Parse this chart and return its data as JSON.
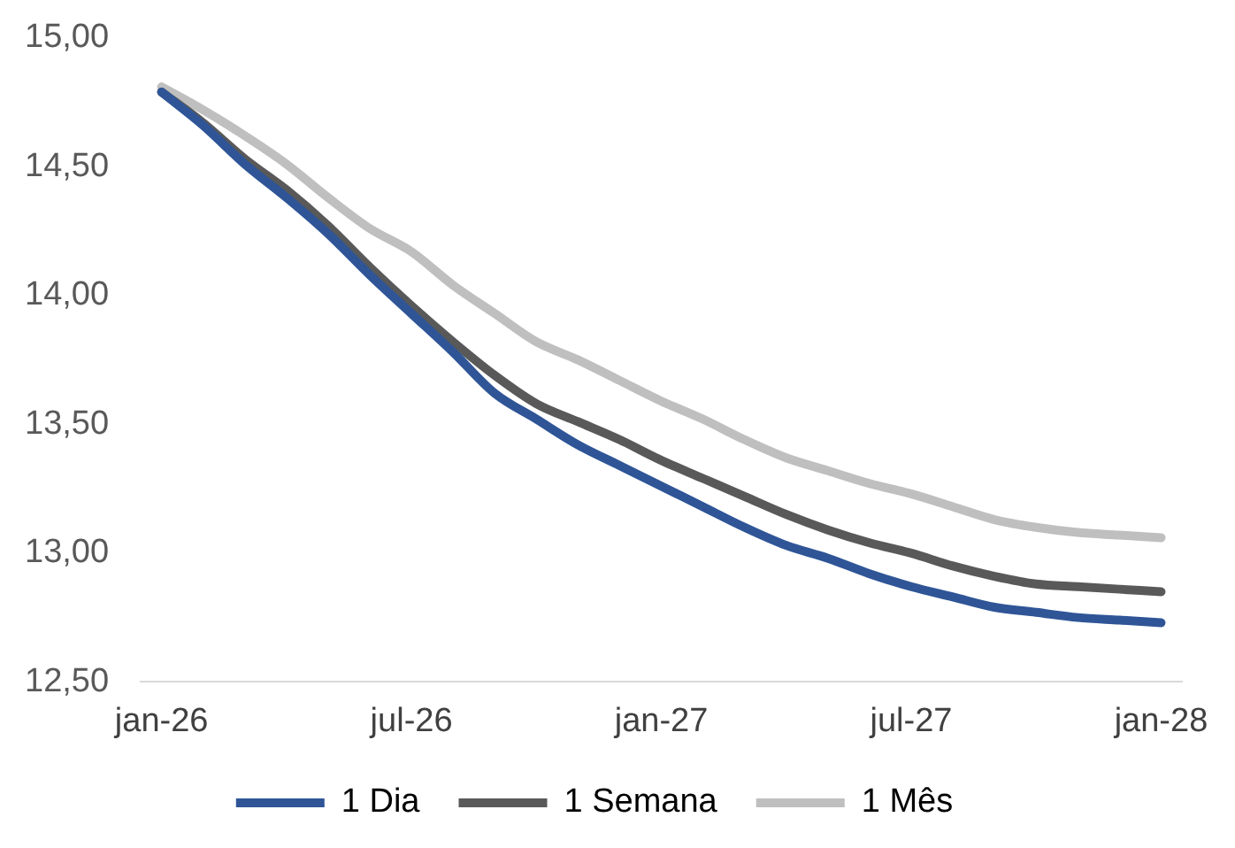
{
  "chart_data": {
    "type": "line",
    "categories": [
      "jan-26",
      null,
      null,
      null,
      null,
      null,
      "jul-26",
      null,
      null,
      null,
      null,
      null,
      "jan-27",
      null,
      null,
      null,
      null,
      null,
      "jul-27",
      null,
      null,
      null,
      null,
      null,
      "jan-28"
    ],
    "series": [
      {
        "name": "1 Dia",
        "color": "#2f5597",
        "values": [
          14.79,
          14.66,
          14.51,
          14.38,
          14.24,
          14.08,
          13.93,
          13.78,
          13.62,
          13.52,
          13.42,
          13.34,
          13.26,
          13.18,
          13.1,
          13.03,
          12.98,
          12.92,
          12.87,
          12.83,
          12.79,
          12.77,
          12.75,
          12.74,
          12.73
        ]
      },
      {
        "name": "1 Semana",
        "color": "#595959",
        "values": [
          14.79,
          14.67,
          14.53,
          14.41,
          14.27,
          14.11,
          13.96,
          13.82,
          13.69,
          13.58,
          13.51,
          13.44,
          13.36,
          13.29,
          13.22,
          13.15,
          13.09,
          13.04,
          13.0,
          12.95,
          12.91,
          12.88,
          12.87,
          12.86,
          12.85
        ]
      },
      {
        "name": "1 Mês",
        "color": "#bfbfbf",
        "values": [
          14.81,
          14.72,
          14.62,
          14.51,
          14.38,
          14.26,
          14.17,
          14.04,
          13.93,
          13.82,
          13.75,
          13.67,
          13.59,
          13.52,
          13.44,
          13.37,
          13.32,
          13.27,
          13.23,
          13.18,
          13.13,
          13.1,
          13.08,
          13.07,
          13.06
        ]
      }
    ],
    "ylim": [
      12.5,
      15
    ],
    "yticks": [
      {
        "value": 12.5,
        "label": "12,50"
      },
      {
        "value": 13,
        "label": "13,00"
      },
      {
        "value": 13.5,
        "label": "13,50"
      },
      {
        "value": 14,
        "label": "14,00"
      },
      {
        "value": 14.5,
        "label": "14,50"
      },
      {
        "value": 15,
        "label": "15,00"
      }
    ],
    "grid": false,
    "legend": "bottom",
    "marker": "none",
    "line_style": "solid"
  }
}
